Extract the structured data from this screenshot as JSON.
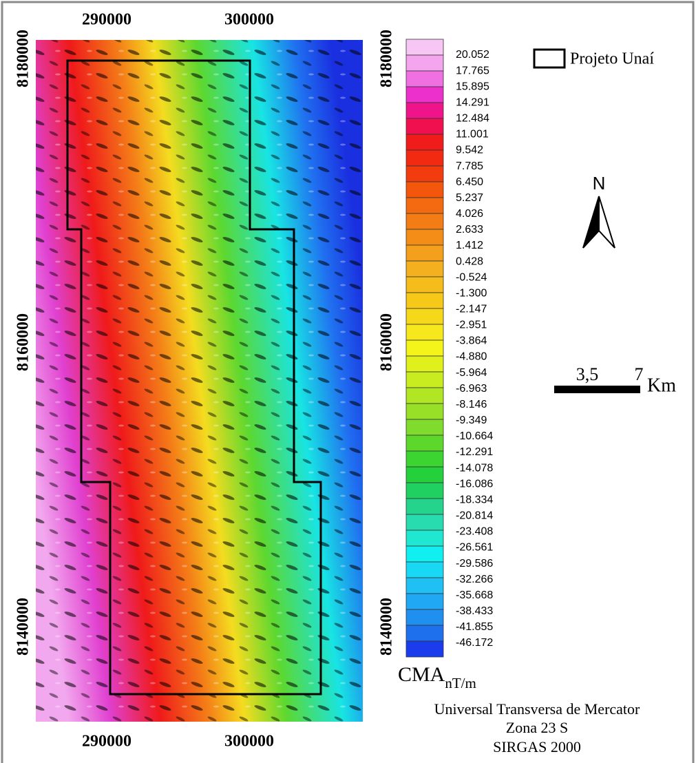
{
  "map": {
    "x_labels_top": [
      "290000",
      "300000"
    ],
    "x_labels_bottom": [
      "290000",
      "300000"
    ],
    "y_labels_left": [
      "8180000",
      "8160000",
      "8140000"
    ],
    "y_labels_right": [
      "8180000",
      "8160000",
      "8140000"
    ]
  },
  "legend": {
    "area_label": "Projeto Unaí",
    "colorbar_title": "CMA",
    "colorbar_unit": "nT/m",
    "class_labels": [
      "20.052",
      "17.765",
      "15.895",
      "14.291",
      "12.484",
      "11.001",
      "9.542",
      "7.785",
      "6.450",
      "5.237",
      "4.026",
      "2.633",
      "1.412",
      "0.428",
      "-0.524",
      "-1.300",
      "-2.147",
      "-2.951",
      "-3.864",
      "-4.880",
      "-5.964",
      "-6.963",
      "-8.146",
      "-9.349",
      "-10.664",
      "-12.291",
      "-14.078",
      "-16.086",
      "-18.334",
      "-20.814",
      "-23.408",
      "-26.561",
      "-29.586",
      "-32.266",
      "-35.668",
      "-38.433",
      "-41.855",
      "-46.172"
    ],
    "swatch_colors": [
      "#f8c6f4",
      "#f5a4ee",
      "#f070e2",
      "#ec30cc",
      "#f0148a",
      "#f01050",
      "#f01c1c",
      "#f22a12",
      "#f23c10",
      "#f4560c",
      "#f46a10",
      "#f47c14",
      "#f48c18",
      "#f5a01c",
      "#f5b020",
      "#f6bc1c",
      "#f6c818",
      "#f6d81a",
      "#f6e81c",
      "#f4f41a",
      "#e0f01c",
      "#c8ec20",
      "#b0e624",
      "#98e028",
      "#80dc2c",
      "#5cd82c",
      "#3cd430",
      "#24d03c",
      "#20d060",
      "#24d48c",
      "#28dcb0",
      "#20e8d0",
      "#10f0f0",
      "#18d8f4",
      "#20c0f4",
      "#20a8f4",
      "#2090f0",
      "#1e70ec",
      "#1a3cec"
    ]
  },
  "north": "N",
  "scale_bar": {
    "labels": [
      "3,5",
      "7"
    ],
    "unit": "Km"
  },
  "projection": [
    "Universal Transversa de Mercator",
    "Zona 23 S",
    "SIRGAS 2000"
  ]
}
